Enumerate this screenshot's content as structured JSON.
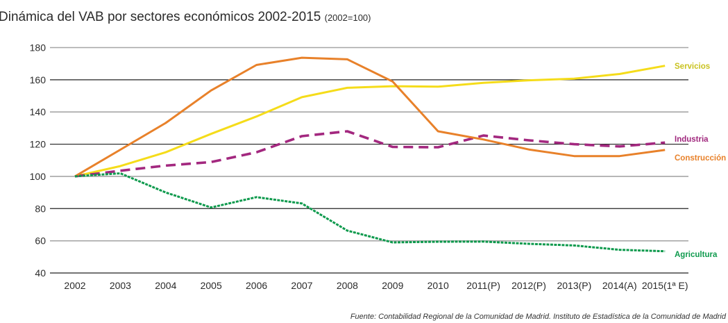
{
  "chart_data": {
    "type": "line",
    "title": "Dinámica del VAB por sectores económicos 2002-2015",
    "subtitle": "(2002=100)",
    "xlabel": "",
    "ylabel": "",
    "categories": [
      "2002",
      "2003",
      "2004",
      "2005",
      "2006",
      "2007",
      "2008",
      "2009",
      "2010",
      "2011(P)",
      "2012(P)",
      "2013(P)",
      "2014(A)",
      "2015(1ª E)"
    ],
    "ylim": [
      40,
      180
    ],
    "yticks": [
      180,
      160,
      140,
      120,
      100,
      80,
      60,
      40
    ],
    "grid": true,
    "legend": "inline-right",
    "series": [
      {
        "name": "Servicios",
        "color": "#f5dc1a",
        "label_color": "#c9c21f",
        "style": "solid",
        "values": [
          100,
          106.4,
          115,
          126.4,
          137.2,
          149.2,
          155,
          156,
          155.7,
          158.1,
          159.7,
          160.7,
          163.6,
          168.7
        ]
      },
      {
        "name": "Industria",
        "color": "#a3287f",
        "label_color": "#a0277d",
        "style": "dashed",
        "values": [
          100,
          103.5,
          106.7,
          108.9,
          115,
          125,
          128,
          118.3,
          118.1,
          125.4,
          122.4,
          120,
          118.6,
          121
        ]
      },
      {
        "name": "Construcción",
        "color": "#e8812a",
        "label_color": "#e8812a",
        "style": "solid",
        "values": [
          100,
          116.6,
          133.2,
          153.4,
          169.2,
          173.7,
          172.7,
          158.9,
          128,
          122.9,
          116.7,
          112.6,
          112.6,
          116.4
        ]
      },
      {
        "name": "Agricultura",
        "color": "#0e9a4d",
        "label_color": "#0e9a4d",
        "style": "dotted",
        "values": [
          100,
          101.9,
          90,
          80.7,
          87.1,
          83.2,
          66.3,
          59,
          59.4,
          59.5,
          58.1,
          57.1,
          54.4,
          53.5
        ]
      }
    ],
    "source": "Fuente: Contabilidad Regional de la Comunidad de Madrid. Instituto de Estadística de la Comunidad de Madrid"
  }
}
